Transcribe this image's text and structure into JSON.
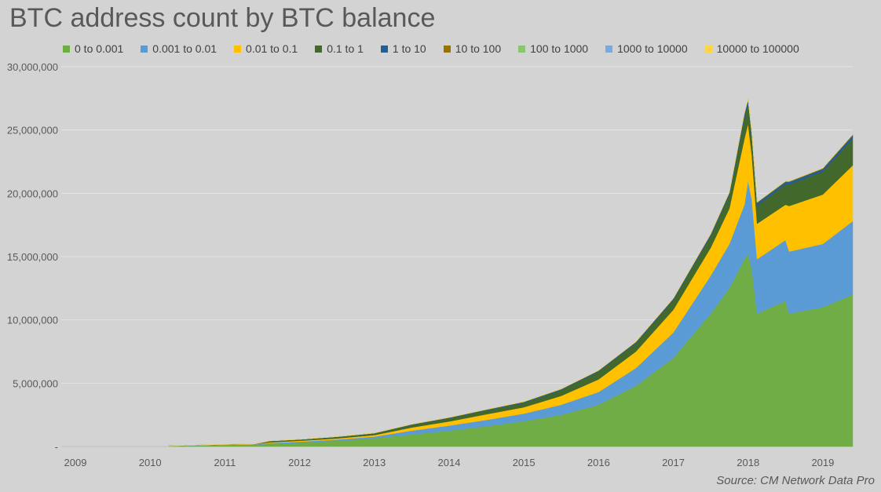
{
  "chart_data": {
    "type": "area",
    "stacked": true,
    "title": "BTC address count by BTC balance",
    "source": "Source: CM Network Data Pro",
    "xlabel": "",
    "ylabel": "",
    "xlim": [
      2009.0,
      2019.4
    ],
    "ylim": [
      0,
      30000000
    ],
    "y_ticks": [
      0,
      5000000,
      10000000,
      15000000,
      20000000,
      25000000,
      30000000
    ],
    "y_tick_labels": [
      "-",
      "5,000,000",
      "10,000,000",
      "15,000,000",
      "20,000,000",
      "25,000,000",
      "30,000,000"
    ],
    "x_tick_labels": [
      "2009",
      "2010",
      "2011",
      "2012",
      "2013",
      "2014",
      "2015",
      "2016",
      "2017",
      "2018",
      "2019"
    ],
    "grid": true,
    "legend_position": "top",
    "x": [
      2010.25,
      2011.0,
      2011.4,
      2011.6,
      2012.0,
      2012.5,
      2013.0,
      2013.5,
      2014.0,
      2014.5,
      2015.0,
      2015.5,
      2016.0,
      2016.5,
      2017.0,
      2017.5,
      2017.75,
      2017.95,
      2018.0,
      2018.05,
      2018.12,
      2018.5,
      2018.55,
      2019.0,
      2019.4
    ],
    "series": [
      {
        "name": "0 to 0.001",
        "color": "#70ad47",
        "values": [
          30000,
          100000,
          120000,
          200000,
          300000,
          450000,
          650000,
          950000,
          1250000,
          1600000,
          2000000,
          2500000,
          3300000,
          4800000,
          7000000,
          10500000,
          12500000,
          14800000,
          15200000,
          14000000,
          10500000,
          11500000,
          10500000,
          11000000,
          12000000
        ]
      },
      {
        "name": "0.001 to 0.01",
        "color": "#5b9bd5",
        "values": [
          10000,
          30000,
          35000,
          70000,
          80000,
          100000,
          130000,
          300000,
          400000,
          500000,
          600000,
          800000,
          1000000,
          1400000,
          2000000,
          3000000,
          3500000,
          4300000,
          5800000,
          5500000,
          4300000,
          4800000,
          4900000,
          5000000,
          5800000
        ]
      },
      {
        "name": "0.01 to 0.1",
        "color": "#ffc000",
        "values": [
          5000,
          15000,
          20000,
          60000,
          70000,
          90000,
          120000,
          250000,
          330000,
          450000,
          500000,
          700000,
          1000000,
          1300000,
          1800000,
          2200000,
          2800000,
          5200000,
          4500000,
          3500000,
          2800000,
          2800000,
          3600000,
          3900000,
          4400000
        ]
      },
      {
        "name": "0.1 to 1",
        "color": "#43682b",
        "values": [
          3000,
          10000,
          15000,
          80000,
          80000,
          100000,
          120000,
          200000,
          250000,
          300000,
          350000,
          450000,
          600000,
          650000,
          750000,
          900000,
          1050000,
          1600000,
          1500000,
          1400000,
          1400000,
          1600000,
          1700000,
          1800000,
          2100000
        ]
      },
      {
        "name": "1 to 10",
        "color": "#255e91",
        "values": [
          1000,
          3000,
          4000,
          20000,
          22000,
          25000,
          30000,
          40000,
          45000,
          55000,
          65000,
          70000,
          80000,
          90000,
          110000,
          150000,
          180000,
          350000,
          380000,
          280000,
          250000,
          200000,
          200000,
          230000,
          280000
        ]
      },
      {
        "name": "10 to 100",
        "color": "#997300",
        "values": [
          500,
          1500,
          2000,
          6000,
          7000,
          8000,
          9000,
          12000,
          14000,
          16000,
          18000,
          20000,
          22000,
          24000,
          28000,
          32000,
          35000,
          45000,
          48000,
          40000,
          38000,
          40000,
          40000,
          45000,
          50000
        ]
      },
      {
        "name": "100 to 1000",
        "color": "#8bc56f",
        "values": [
          100,
          300,
          400,
          1200,
          1400,
          1600,
          1800,
          2200,
          2500,
          2800,
          3000,
          3200,
          3500,
          3800,
          4200,
          4800,
          5200,
          5600,
          5800,
          5400,
          5200,
          5200,
          5200,
          5300,
          5500
        ]
      },
      {
        "name": "1000 to 10000",
        "color": "#7ba9dc",
        "values": [
          10,
          30,
          40,
          100,
          120,
          140,
          150,
          200,
          220,
          240,
          260,
          280,
          300,
          320,
          350,
          380,
          400,
          420,
          430,
          420,
          410,
          410,
          410,
          420,
          430
        ]
      },
      {
        "name": "10000 to 100000",
        "color": "#ffd447",
        "values": [
          1,
          2,
          3,
          5,
          6,
          7,
          8,
          10,
          10,
          11,
          11,
          12,
          12,
          13,
          13,
          14,
          14,
          15,
          15,
          15,
          15,
          15,
          15,
          15,
          15
        ]
      }
    ]
  }
}
